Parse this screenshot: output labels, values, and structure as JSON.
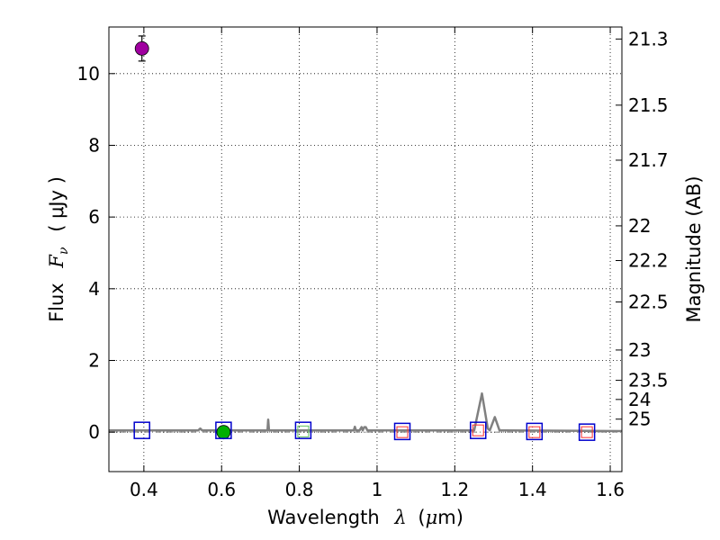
{
  "chart_data": {
    "type": "scatter",
    "xlabel": "Wavelength  λ (μm)",
    "ylabel": "Flux  Fν  ( μJy )",
    "ylabel_parts": {
      "prefix": "Flux",
      "symbol": "F",
      "subscript": "ν",
      "unit": "( μJy )"
    },
    "xlabel_parts": {
      "prefix": "Wavelength",
      "symbol": "λ",
      "unit": "(μm)",
      "unit_prefix": "(",
      "unit_mu": "μ",
      "unit_rest": "m)"
    },
    "y2label": "Magnitude (AB)",
    "xlim": [
      0.31,
      1.63
    ],
    "ylim": [
      -1.1,
      11.3
    ],
    "grid": true,
    "x_ticks": [
      0.4,
      0.6,
      0.8,
      1.0,
      1.2,
      1.4,
      1.6
    ],
    "x_tick_labels": [
      "0.4",
      "0.6",
      "0.8",
      "1",
      "1.2",
      "1.4",
      "1.6"
    ],
    "y_ticks": [
      0,
      2,
      4,
      6,
      8,
      10
    ],
    "y_tick_labels": [
      "0",
      "2",
      "4",
      "6",
      "8",
      "10"
    ],
    "y2_ticks": [
      21.3,
      21.5,
      21.7,
      22,
      22.2,
      22.5,
      23,
      23.5,
      24,
      25
    ],
    "y2_tick_labels": [
      "21.3",
      "21.5",
      "21.7",
      "22",
      "22.2",
      "22.5",
      "23",
      "23.5",
      "24",
      "25"
    ],
    "detections": [
      {
        "x": 0.395,
        "y": 10.7,
        "yerr": 0.35,
        "color": "#a000a0"
      },
      {
        "x": 0.605,
        "y": 0.0,
        "yerr": 0.08,
        "color": "#00b000"
      }
    ],
    "model_points": [
      {
        "x": 0.395,
        "y": 0.05
      },
      {
        "x": 0.605,
        "y": 0.05
      },
      {
        "x": 0.81,
        "y": 0.05
      },
      {
        "x": 1.065,
        "y": 0.02
      },
      {
        "x": 1.26,
        "y": 0.05
      },
      {
        "x": 1.405,
        "y": 0.02
      },
      {
        "x": 1.54,
        "y": 0.0
      }
    ],
    "upper_limits": [
      {
        "x": 0.81,
        "y": 0.02,
        "color": "#60c060"
      },
      {
        "x": 1.065,
        "y": 0.0,
        "color": "#ff3030"
      },
      {
        "x": 1.26,
        "y": 0.05,
        "color": "#ff3030"
      },
      {
        "x": 1.405,
        "y": 0.0,
        "color": "#ff3030"
      },
      {
        "x": 1.54,
        "y": 0.0,
        "color": "#ff3030"
      }
    ],
    "model_spectrum": {
      "color": "#808080",
      "x": [
        0.31,
        0.54,
        0.545,
        0.55,
        0.7,
        0.718,
        0.72,
        0.722,
        0.74,
        0.94,
        0.943,
        0.946,
        0.955,
        0.96,
        0.963,
        0.967,
        0.971,
        0.975,
        1.0,
        1.2,
        1.25,
        1.27,
        1.285,
        1.29,
        1.303,
        1.315,
        1.33,
        1.5,
        1.63
      ],
      "y": [
        0.05,
        0.05,
        0.1,
        0.05,
        0.05,
        0.05,
        0.35,
        0.05,
        0.05,
        0.05,
        0.15,
        0.05,
        0.05,
        0.14,
        0.05,
        0.14,
        0.14,
        0.05,
        0.05,
        0.05,
        0.05,
        1.08,
        0.1,
        0.05,
        0.42,
        0.05,
        0.05,
        0.04,
        0.03
      ]
    },
    "zero_line": {
      "y": 0.0,
      "color": "#888888",
      "style": "dashdot"
    }
  }
}
